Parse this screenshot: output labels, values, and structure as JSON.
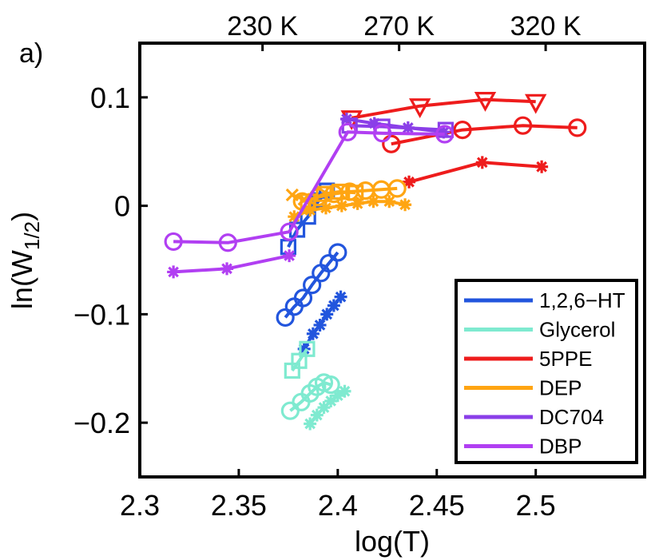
{
  "chart_data": {
    "type": "line",
    "panel_label": "a)",
    "xlabel": "log(T)",
    "ylabel": "ln(W_1/2)",
    "ylabel_main": "ln(W",
    "ylabel_sub": "1/2",
    "ylabel_close": ")",
    "xlim": [
      2.3,
      2.555
    ],
    "ylim": [
      -0.25,
      0.15
    ],
    "xticks": [
      2.3,
      2.35,
      2.4,
      2.45,
      2.5
    ],
    "xtick_labels": [
      "2.3",
      "2.35",
      "2.4",
      "2.45",
      "2.5"
    ],
    "yticks": [
      0.1,
      0,
      -0.1,
      -0.2
    ],
    "ytick_labels": [
      "0.1",
      "0",
      "−0.1",
      "−0.2"
    ],
    "top_axis": {
      "ticks": [
        2.362,
        2.431,
        2.505
      ],
      "labels": [
        "230 K",
        "270 K",
        "320 K"
      ]
    },
    "grid": false,
    "legend_position": "lower-right",
    "series": [
      {
        "name": "1,2,6−HT",
        "color": "#2255dd",
        "marker": "circle",
        "x": [
          2.3735,
          2.378,
          2.3825,
          2.387,
          2.3915,
          2.3955,
          2.4
        ],
        "y": [
          -0.103,
          -0.093,
          -0.085,
          -0.073,
          -0.062,
          -0.053,
          -0.043
        ]
      },
      {
        "name": "1,2,6−HT",
        "color": "#2255dd",
        "marker": "asterisk",
        "x": [
          2.383,
          2.3875,
          2.391,
          2.3945,
          2.398,
          2.4015
        ],
        "y": [
          -0.132,
          -0.118,
          -0.11,
          -0.1,
          -0.092,
          -0.084
        ]
      },
      {
        "name": "1,2,6−HT",
        "color": "#2255dd",
        "marker": "square",
        "x": [
          2.375,
          2.3795,
          2.385,
          2.3905,
          2.3945
        ],
        "y": [
          -0.038,
          -0.022,
          -0.01,
          0.005,
          0.014
        ]
      },
      {
        "name": "Glycerol",
        "color": "#7fead0",
        "marker": "circle",
        "x": [
          2.376,
          2.3815,
          2.386,
          2.3895,
          2.393,
          2.3965
        ],
        "y": [
          -0.189,
          -0.181,
          -0.173,
          -0.167,
          -0.163,
          -0.165
        ]
      },
      {
        "name": "Glycerol",
        "color": "#7fead0",
        "marker": "asterisk",
        "x": [
          2.386,
          2.3895,
          2.393,
          2.3965,
          2.4,
          2.4035
        ],
        "y": [
          -0.201,
          -0.193,
          -0.186,
          -0.18,
          -0.175,
          -0.171
        ]
      },
      {
        "name": "Glycerol",
        "color": "#7fead0",
        "marker": "square",
        "x": [
          2.377,
          2.3805,
          2.3845
        ],
        "y": [
          -0.152,
          -0.143,
          -0.132
        ]
      },
      {
        "name": "5PPE",
        "color": "#ee1c1c",
        "marker": "circle",
        "x": [
          2.427,
          2.463,
          2.4935,
          2.521
        ],
        "y": [
          0.057,
          0.07,
          0.074,
          0.072
        ]
      },
      {
        "name": "5PPE",
        "color": "#ee1c1c",
        "marker": "triangle-down",
        "x": [
          2.407,
          2.4415,
          2.4745,
          2.5
        ],
        "y": [
          0.081,
          0.092,
          0.098,
          0.096
        ]
      },
      {
        "name": "5PPE",
        "color": "#ee1c1c",
        "marker": "asterisk",
        "x": [
          2.436,
          2.473,
          2.503
        ],
        "y": [
          0.022,
          0.04,
          0.036
        ]
      },
      {
        "name": "DEP",
        "color": "#ffa512",
        "marker": "circle",
        "x": [
          2.382,
          2.39,
          2.398,
          2.406,
          2.414,
          2.422,
          2.43
        ],
        "y": [
          0.004,
          0.008,
          0.011,
          0.013,
          0.014,
          0.015,
          0.016
        ]
      },
      {
        "name": "DEP",
        "color": "#ffa512",
        "marker": "asterisk",
        "x": [
          2.378,
          2.386,
          2.394,
          2.402,
          2.41,
          2.418,
          2.426,
          2.434
        ],
        "y": [
          -0.01,
          -0.004,
          -0.002,
          0.0,
          0.002,
          0.004,
          0.004,
          0.001
        ]
      },
      {
        "name": "DEP",
        "color": "#ffa512",
        "marker": "square",
        "x": [
          2.385,
          2.393,
          2.401,
          2.409
        ],
        "y": [
          0.004,
          0.011,
          0.013,
          0.012
        ]
      },
      {
        "name": "DEP",
        "color": "#ffa512",
        "marker": "x",
        "x": [
          2.377,
          2.383
        ],
        "y": [
          0.01,
          0.006
        ]
      },
      {
        "name": "DC704",
        "color": "#8a3fe8",
        "marker": "asterisk",
        "x": [
          2.4045,
          2.4185,
          2.4355,
          2.4535
        ],
        "y": [
          0.08,
          0.076,
          0.072,
          0.068
        ]
      },
      {
        "name": "DC704",
        "color": "#8a3fe8",
        "marker": "square",
        "x": [
          2.406,
          2.4225,
          2.4545
        ],
        "y": [
          0.074,
          0.073,
          0.07
        ]
      },
      {
        "name": "DBP",
        "color": "#b13ff2",
        "marker": "circle",
        "x": [
          2.317,
          2.3445,
          2.3755,
          2.405,
          2.4225,
          2.454
        ],
        "y": [
          -0.033,
          -0.034,
          -0.024,
          0.068,
          0.067,
          0.066
        ]
      },
      {
        "name": "DBP",
        "color": "#b13ff2",
        "marker": "asterisk",
        "x": [
          2.317,
          2.344,
          2.3755
        ],
        "y": [
          -0.061,
          -0.058,
          -0.046
        ]
      }
    ],
    "legend": [
      {
        "name": "1,2,6−HT",
        "color": "#2255dd"
      },
      {
        "name": "Glycerol",
        "color": "#7fead0"
      },
      {
        "name": "5PPE",
        "color": "#ee1c1c"
      },
      {
        "name": "DEP",
        "color": "#ffa512"
      },
      {
        "name": "DC704",
        "color": "#8a3fe8"
      },
      {
        "name": "DBP",
        "color": "#b13ff2"
      }
    ]
  }
}
